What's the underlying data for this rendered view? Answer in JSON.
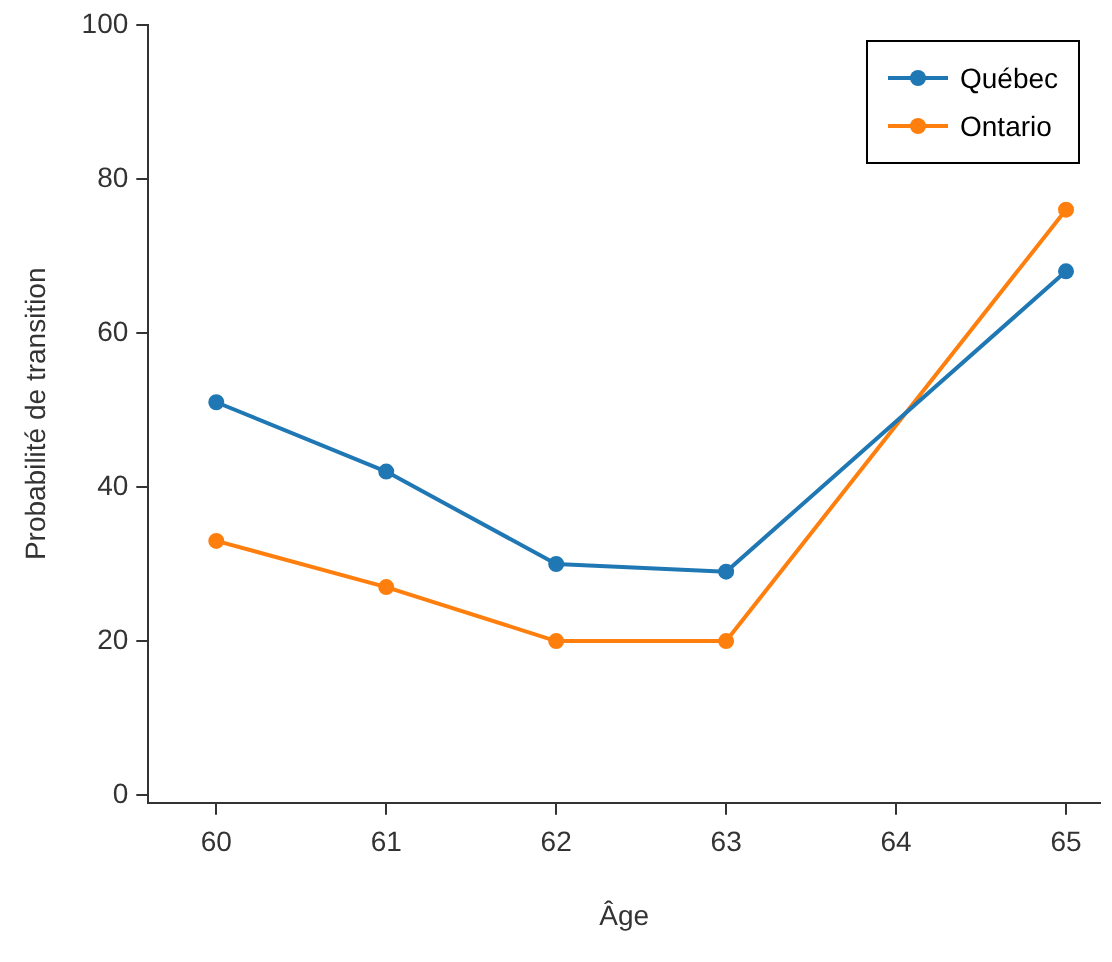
{
  "chart_data": {
    "type": "line",
    "xlabel": "Âge",
    "ylabel": "Probabilité de transition",
    "x": [
      60,
      61,
      62,
      63,
      65
    ],
    "series": [
      {
        "name": "Québec",
        "color": "#1f77b4",
        "values": [
          51,
          42,
          30,
          29,
          68
        ]
      },
      {
        "name": "Ontario",
        "color": "#ff7f0e",
        "values": [
          33,
          27,
          20,
          20,
          76
        ]
      }
    ],
    "xlim": [
      59.6,
      65.2
    ],
    "xticks": [
      60,
      61,
      62,
      63,
      64,
      65
    ],
    "ylim": [
      -1,
      100
    ],
    "yticks": [
      0,
      20,
      40,
      60,
      80,
      100
    ],
    "legend": "top right",
    "marker": "circle",
    "line_style": "solid"
  }
}
